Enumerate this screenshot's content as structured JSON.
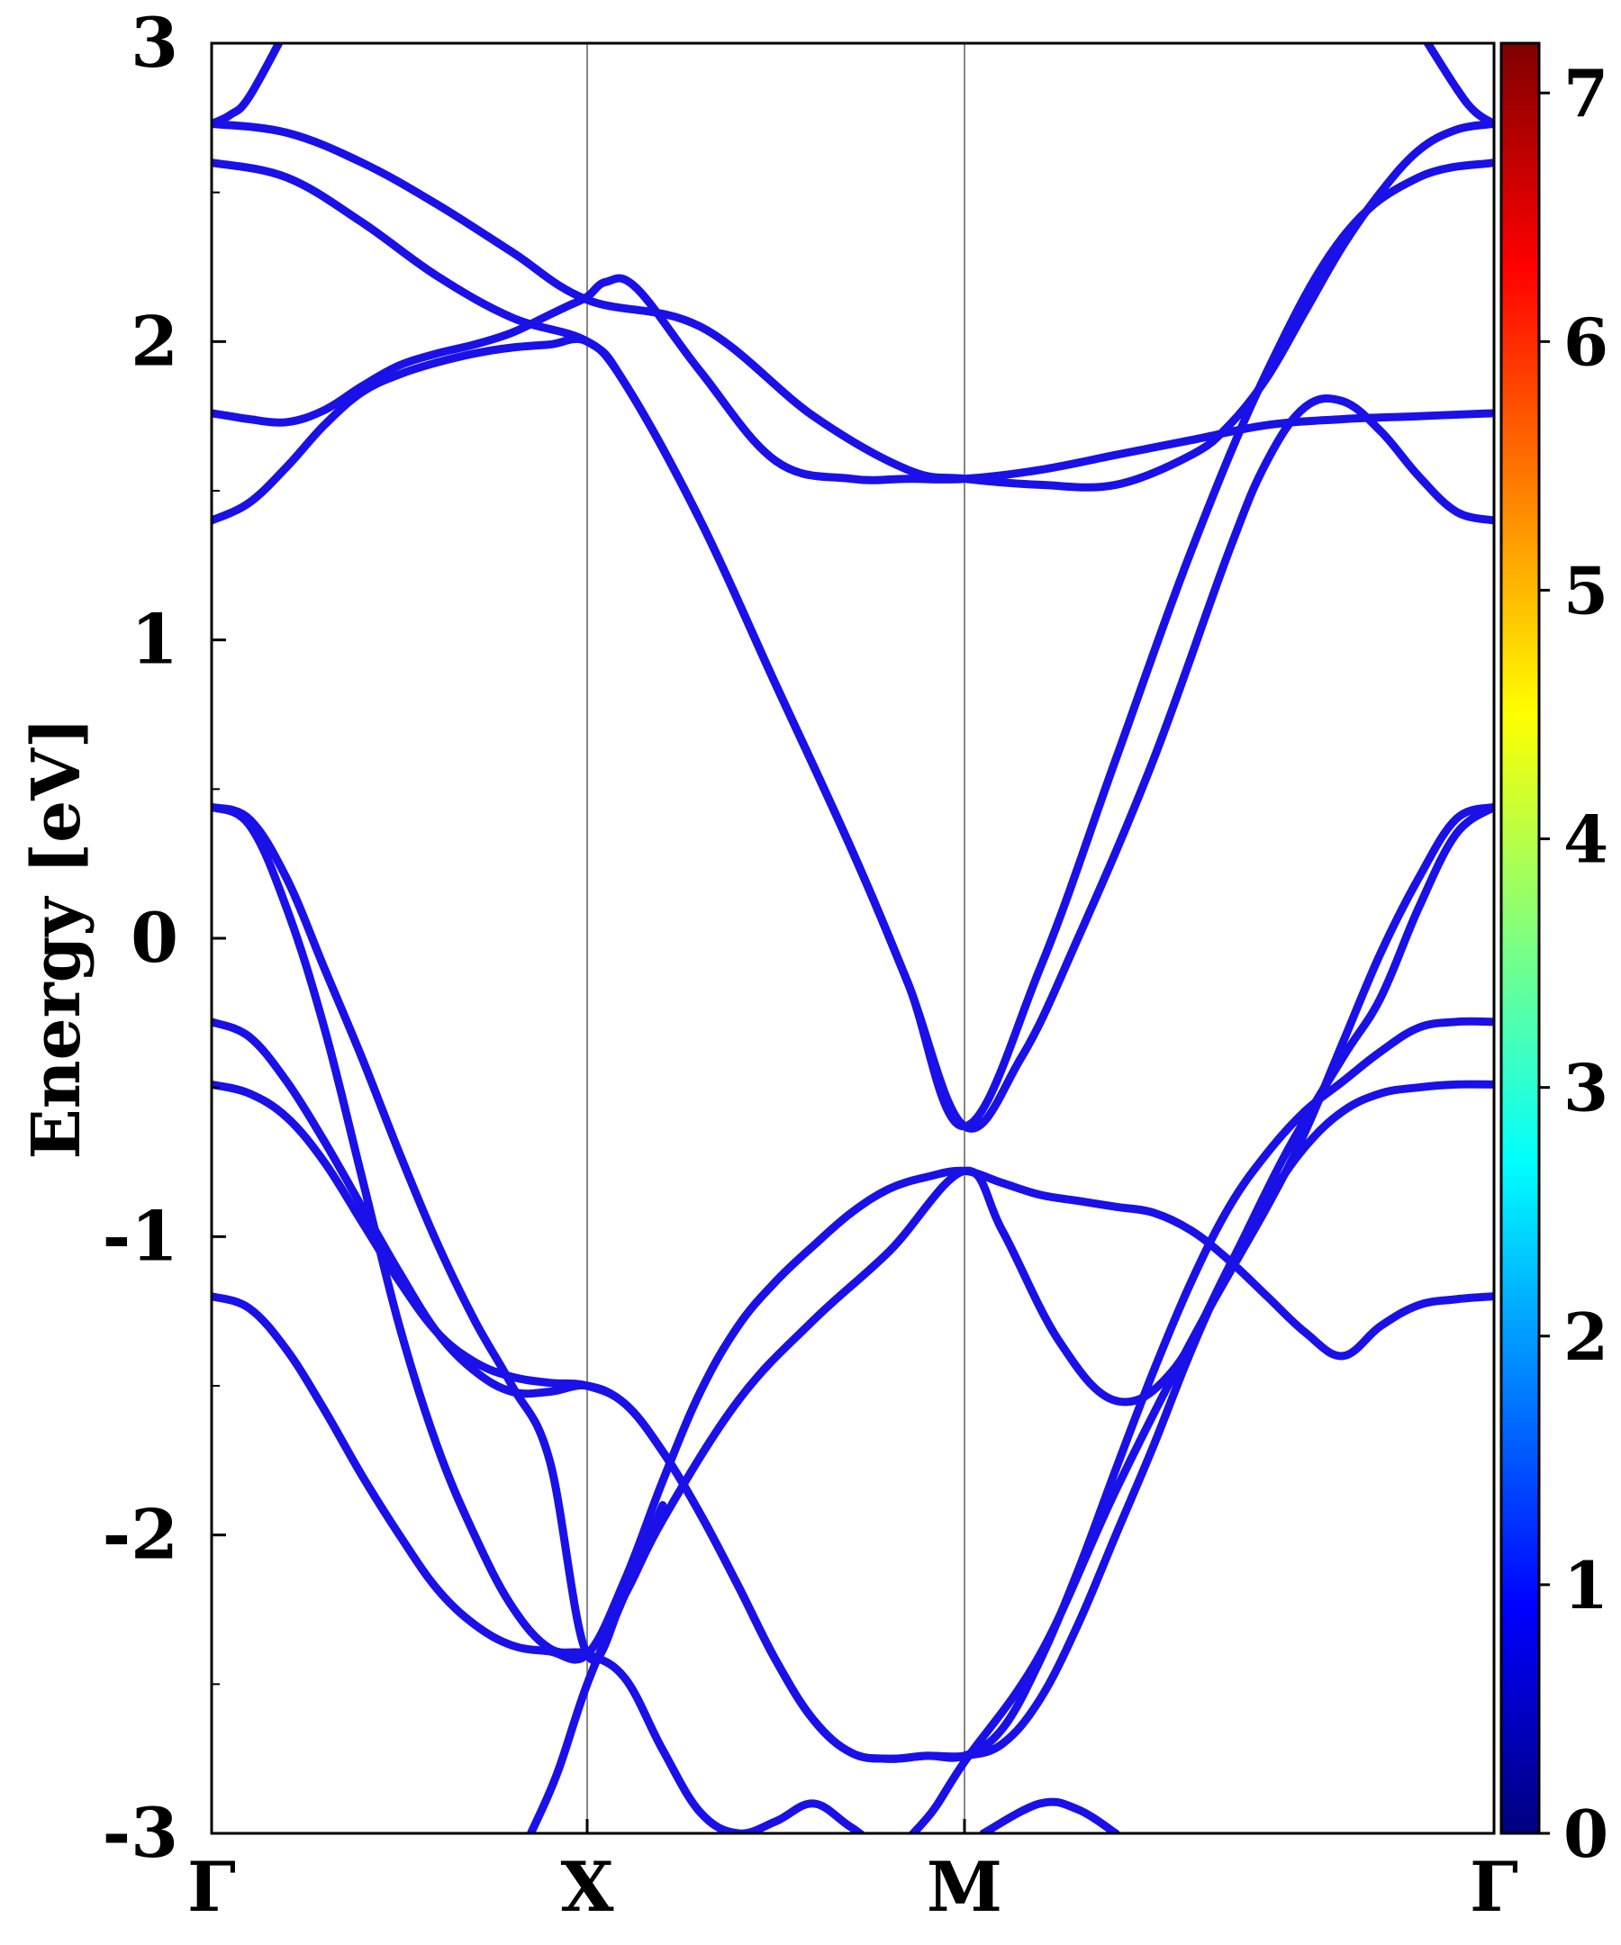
{
  "chart_data": {
    "type": "line",
    "title": "",
    "xlabel": "",
    "ylabel": "Energy [eV]",
    "ylim": [
      -3,
      3
    ],
    "x_ticks": [
      "Γ",
      "X",
      "M",
      "Γ"
    ],
    "y_ticks": [
      "3",
      "2",
      "1",
      "0",
      "-1",
      "-2",
      "-3"
    ],
    "colorbar": {
      "range": [
        0,
        7.2
      ],
      "ticks": [
        "0",
        "1",
        "2",
        "3",
        "4",
        "5",
        "6",
        "7"
      ],
      "colormap": "jet"
    },
    "line_color": "#1a10e8",
    "path_segments": [
      "Γ-X",
      "X-M",
      "M-Γ"
    ],
    "series": [
      {
        "x": [
          0,
          0.05,
          0.1,
          0.2,
          0.3,
          0.4,
          0.5,
          0.6,
          0.7,
          0.8,
          0.9,
          0.95,
          1.0,
          1.05,
          1.13,
          1.3,
          1.5,
          1.7,
          1.85,
          2.0,
          2.2,
          2.4,
          2.6,
          2.8,
          3.0,
          3.2,
          3.4
        ],
        "y": [
          1.76,
          1.75,
          1.74,
          1.73,
          1.77,
          1.85,
          1.92,
          1.96,
          1.99,
          2.03,
          2.09,
          2.12,
          2.15,
          2.2,
          2.18,
          1.9,
          1.6,
          1.54,
          1.54,
          1.54,
          1.57,
          1.62,
          1.67,
          1.72,
          1.74,
          1.75,
          1.76
        ]
      },
      {
        "x": [
          0,
          0.1,
          0.2,
          0.3,
          0.4,
          0.5,
          0.6,
          0.7,
          0.8,
          0.9,
          1.0,
          1.1,
          1.3,
          1.5,
          1.7,
          1.85,
          2.0,
          2.15,
          2.3,
          2.5,
          2.7,
          2.8,
          2.9,
          3.0,
          3.1,
          3.2,
          3.3,
          3.4
        ],
        "y": [
          1.4,
          1.46,
          1.58,
          1.72,
          1.83,
          1.89,
          1.93,
          1.96,
          1.98,
          1.99,
          2.0,
          1.86,
          1.4,
          0.85,
          0.3,
          -0.15,
          -0.63,
          -0.4,
          0.0,
          0.6,
          1.3,
          1.6,
          1.78,
          1.8,
          1.7,
          1.55,
          1.43,
          1.4
        ]
      },
      {
        "x": [
          0,
          0.2,
          0.4,
          0.6,
          0.8,
          1.0,
          1.1,
          1.3,
          1.5,
          1.7,
          1.85,
          2.0,
          2.2,
          2.4,
          2.6,
          2.8,
          3.0,
          3.2,
          3.4
        ],
        "y": [
          2.6,
          2.55,
          2.4,
          2.22,
          2.08,
          2.0,
          1.86,
          1.4,
          0.85,
          0.3,
          -0.15,
          -0.63,
          -0.1,
          0.6,
          1.3,
          1.9,
          2.35,
          2.55,
          2.6
        ]
      },
      {
        "x": [
          0,
          0.2,
          0.4,
          0.6,
          0.8,
          1.0,
          1.3,
          1.6,
          1.85,
          2.0,
          2.2,
          2.4,
          2.6,
          2.7,
          2.8,
          2.9,
          3.0,
          3.1,
          3.2,
          3.3,
          3.4
        ],
        "y": [
          2.73,
          2.7,
          2.6,
          2.46,
          2.3,
          2.14,
          2.05,
          1.75,
          1.57,
          1.54,
          1.52,
          1.52,
          1.62,
          1.72,
          1.88,
          2.1,
          2.32,
          2.5,
          2.64,
          2.71,
          2.73
        ]
      },
      {
        "x": [
          0,
          0.05,
          0.1,
          0.2
        ],
        "y": [
          2.73,
          2.76,
          2.82,
          3.05
        ]
      },
      {
        "x": [
          3.2,
          3.3,
          3.35,
          3.4
        ],
        "y": [
          3.05,
          2.85,
          2.77,
          2.73
        ]
      },
      {
        "x": [
          0,
          0.1,
          0.2,
          0.3,
          0.4,
          0.5,
          0.6,
          0.7,
          0.8,
          0.9,
          1.0,
          1.1,
          1.2,
          1.4,
          1.6,
          1.8,
          2.0,
          2.1,
          2.25,
          2.4,
          2.55,
          2.7,
          2.85,
          3.0,
          3.1,
          3.2,
          3.3,
          3.4
        ],
        "y": [
          0.44,
          0.4,
          0.2,
          -0.1,
          -0.4,
          -0.72,
          -1.02,
          -1.28,
          -1.5,
          -1.75,
          -2.4,
          -2.2,
          -1.95,
          -1.55,
          -1.28,
          -1.05,
          -0.78,
          -0.98,
          -1.35,
          -1.55,
          -1.45,
          -1.1,
          -0.72,
          -0.4,
          -0.2,
          0.1,
          0.35,
          0.44
        ]
      },
      {
        "x": [
          0,
          0.1,
          0.2,
          0.3,
          0.4,
          0.5,
          0.6,
          0.7,
          0.8,
          0.9,
          1.0,
          1.1,
          1.2,
          1.3,
          1.4,
          1.5,
          1.6,
          1.7,
          1.8,
          1.9,
          2.0,
          2.2,
          2.4,
          2.6,
          2.8,
          2.9,
          3.0,
          3.1,
          3.2,
          3.3,
          3.4
        ],
        "y": [
          0.44,
          0.38,
          0.1,
          -0.3,
          -0.8,
          -1.3,
          -1.7,
          -2.0,
          -2.24,
          -2.38,
          -2.4,
          -2.48,
          -2.72,
          -2.93,
          -3.0,
          -2.96,
          -2.9,
          -2.98,
          -3.05,
          -2.95,
          -2.76,
          -2.4,
          -1.85,
          -1.35,
          -0.9,
          -0.65,
          -0.35,
          -0.05,
          0.2,
          0.4,
          0.44
        ]
      },
      {
        "x": [
          0,
          0.1,
          0.2,
          0.3,
          0.4,
          0.5,
          0.6,
          0.7,
          0.8,
          0.9,
          1.0,
          1.1,
          1.2,
          1.3,
          1.4,
          1.5,
          1.6,
          1.7,
          1.8,
          1.9,
          2.0,
          2.1,
          2.2,
          2.3,
          2.4,
          2.5,
          2.6,
          2.7,
          2.8,
          2.9,
          3.0,
          3.1,
          3.2,
          3.3,
          3.4
        ],
        "y": [
          -0.28,
          -0.33,
          -0.48,
          -0.68,
          -0.9,
          -1.12,
          -1.32,
          -1.45,
          -1.52,
          -1.52,
          -1.5,
          -1.56,
          -1.72,
          -1.93,
          -2.17,
          -2.42,
          -2.62,
          -2.73,
          -2.75,
          -2.74,
          -2.74,
          -2.65,
          -2.42,
          -2.12,
          -1.78,
          -1.45,
          -1.15,
          -0.9,
          -0.72,
          -0.58,
          -0.48,
          -0.38,
          -0.3,
          -0.28,
          -0.28
        ]
      },
      {
        "x": [
          0,
          0.1,
          0.2,
          0.3,
          0.4,
          0.5,
          0.6,
          0.7,
          0.8,
          0.9,
          1.0,
          1.1,
          1.2,
          1.3,
          1.4,
          1.5,
          1.6,
          1.7,
          1.8,
          1.9,
          2.0,
          2.1,
          2.2,
          2.3,
          2.4,
          2.5,
          2.6,
          2.7,
          2.8,
          2.9,
          3.0,
          3.1,
          3.2,
          3.3,
          3.4
        ],
        "y": [
          -0.49,
          -0.52,
          -0.6,
          -0.75,
          -0.95,
          -1.15,
          -1.32,
          -1.42,
          -1.47,
          -1.49,
          -1.5,
          -1.56,
          -1.72,
          -1.93,
          -2.17,
          -2.42,
          -2.62,
          -2.73,
          -2.75,
          -2.74,
          -2.74,
          -2.7,
          -2.55,
          -2.3,
          -2.0,
          -1.7,
          -1.38,
          -1.1,
          -0.88,
          -0.7,
          -0.58,
          -0.52,
          -0.5,
          -0.49,
          -0.49
        ]
      },
      {
        "x": [
          0,
          0.1,
          0.2,
          0.3,
          0.4,
          0.5,
          0.6,
          0.7,
          0.8,
          0.9,
          1.0,
          1.1,
          1.2,
          1.3,
          1.4,
          1.5,
          1.6,
          1.7,
          1.8,
          1.9,
          2.0,
          2.1,
          2.2,
          2.3,
          2.4,
          2.5,
          2.6,
          2.7,
          2.8,
          2.9,
          3.0,
          3.1,
          3.2,
          3.3,
          3.4
        ],
        "y": [
          -1.2,
          -1.24,
          -1.38,
          -1.58,
          -1.8,
          -2.0,
          -2.18,
          -2.3,
          -2.37,
          -2.39,
          -2.4,
          -2.15,
          -1.82,
          -1.52,
          -1.3,
          -1.15,
          -1.03,
          -0.92,
          -0.84,
          -0.8,
          -0.78,
          -0.82,
          -0.86,
          -0.88,
          -0.9,
          -0.92,
          -0.98,
          -1.08,
          -1.2,
          -1.32,
          -1.4,
          -1.3,
          -1.23,
          -1.21,
          -1.2
        ]
      },
      {
        "x": [
          0.85,
          0.92,
          1.0,
          1.1,
          1.2
        ],
        "y": [
          -3.0,
          -2.8,
          -2.5,
          -2.2,
          -1.9
        ]
      },
      {
        "x": [
          2.05,
          2.2,
          2.3,
          2.4
        ],
        "y": [
          -3.0,
          -2.9,
          -2.92,
          -3.0
        ]
      }
    ]
  }
}
